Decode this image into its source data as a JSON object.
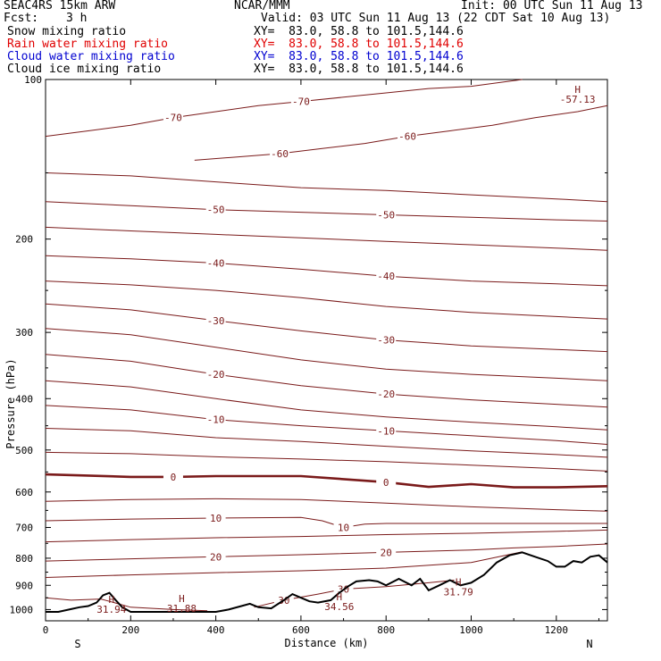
{
  "header": {
    "model": "SEAC4RS 15km ARW",
    "org": "NCAR/MMM",
    "init": "Init: 00 UTC Sun 11 Aug 13",
    "fcst_label": "Fcst:",
    "fcst_value": "3 h",
    "valid": "Valid: 03 UTC Sun 11 Aug 13 (22 CDT Sat 10 Aug 13)"
  },
  "legend": [
    {
      "name": "Snow mixing ratio",
      "xy": "XY=  83.0, 58.8 to 101.5,144.6",
      "color": "#000000"
    },
    {
      "name": "Rain water mixing ratio",
      "xy": "XY=  83.0, 58.8 to 101.5,144.6",
      "color": "#e00000"
    },
    {
      "name": "Cloud water mixing ratio",
      "xy": "XY=  83.0, 58.8 to 101.5,144.6",
      "color": "#0000d0"
    },
    {
      "name": "Cloud ice mixing ratio",
      "xy": "XY=  83.0, 58.8 to 101.5,144.6",
      "color": "#000000"
    }
  ],
  "colors": {
    "isotherm": "#7a1a1a",
    "terrain": "#000000",
    "axis": "#000000"
  },
  "chart_data": {
    "type": "line",
    "title": "",
    "xlabel": "Distance (km)",
    "ylabel": "Pressure (hPa)",
    "xlim": [
      0,
      1320
    ],
    "ylim": [
      1050,
      100
    ],
    "y_scale": "log",
    "x_ticks": [
      0,
      200,
      400,
      600,
      800,
      1000,
      1200
    ],
    "y_ticks": [
      200,
      300,
      400,
      500,
      600,
      700,
      800,
      900,
      1000
    ],
    "y_top_label": "100",
    "endpoint_labels": {
      "left": "S",
      "right": "N"
    },
    "terrain": {
      "x": [
        0,
        30,
        60,
        80,
        100,
        120,
        135,
        150,
        165,
        180,
        200,
        250,
        300,
        350,
        400,
        430,
        460,
        480,
        500,
        530,
        560,
        580,
        600,
        620,
        640,
        670,
        690,
        710,
        730,
        760,
        780,
        800,
        830,
        860,
        880,
        900,
        925,
        950,
        975,
        1000,
        1030,
        1060,
        1090,
        1120,
        1150,
        1180,
        1200,
        1220,
        1240,
        1260,
        1280,
        1300,
        1320
      ],
      "p": [
        1010,
        1010,
        998,
        990,
        985,
        970,
        940,
        930,
        960,
        990,
        1010,
        1010,
        1010,
        1010,
        1010,
        1000,
        985,
        975,
        990,
        995,
        960,
        935,
        950,
        965,
        970,
        960,
        930,
        905,
        885,
        880,
        885,
        900,
        875,
        900,
        875,
        920,
        900,
        880,
        900,
        890,
        860,
        815,
        790,
        780,
        795,
        810,
        830,
        830,
        810,
        815,
        795,
        790,
        815
      ]
    },
    "isotherms": [
      {
        "label": "-70",
        "x": [
          0,
          100,
          200,
          300,
          400,
          500,
          600,
          700,
          800,
          900,
          1000,
          1120
        ],
        "p": [
          128,
          125,
          122,
          118,
          115,
          112,
          110,
          108,
          106,
          104,
          103,
          100
        ]
      },
      {
        "label": "-60",
        "x": [
          350,
          450,
          550,
          650,
          750,
          850,
          950,
          1050,
          1150,
          1250,
          1320
        ],
        "p": [
          142,
          140,
          138,
          135,
          132,
          128,
          125,
          122,
          118,
          115,
          112
        ]
      },
      {
        "label": "",
        "x": [
          0,
          200,
          400,
          600,
          800,
          1000,
          1200,
          1320
        ],
        "p": [
          150,
          152,
          156,
          160,
          162,
          165,
          168,
          170
        ]
      },
      {
        "label": "-50",
        "x": [
          0,
          200,
          400,
          600,
          800,
          1000,
          1200,
          1320
        ],
        "p": [
          170,
          173,
          176,
          178,
          180,
          182,
          184,
          185
        ]
      },
      {
        "label": "",
        "x": [
          0,
          200,
          400,
          600,
          800,
          1000,
          1200,
          1320
        ],
        "p": [
          190,
          193,
          196,
          199,
          202,
          205,
          208,
          210
        ]
      },
      {
        "label": "-40",
        "x": [
          0,
          200,
          400,
          600,
          800,
          1000,
          1200,
          1320
        ],
        "p": [
          215,
          218,
          222,
          228,
          235,
          240,
          243,
          245
        ]
      },
      {
        "label": "",
        "x": [
          0,
          200,
          400,
          600,
          800,
          1000,
          1200,
          1320
        ],
        "p": [
          240,
          244,
          250,
          258,
          268,
          275,
          280,
          283
        ]
      },
      {
        "label": "-30",
        "x": [
          0,
          200,
          400,
          600,
          800,
          1000,
          1200,
          1320
        ],
        "p": [
          265,
          272,
          285,
          298,
          310,
          318,
          323,
          326
        ]
      },
      {
        "label": "",
        "x": [
          0,
          200,
          400,
          600,
          800,
          1000,
          1200,
          1320
        ],
        "p": [
          295,
          303,
          320,
          338,
          352,
          360,
          366,
          370
        ]
      },
      {
        "label": "-20",
        "x": [
          0,
          200,
          400,
          600,
          800,
          1000,
          1200,
          1320
        ],
        "p": [
          330,
          340,
          360,
          378,
          392,
          402,
          410,
          415
        ]
      },
      {
        "label": "",
        "x": [
          0,
          200,
          400,
          600,
          800,
          1000,
          1200,
          1320
        ],
        "p": [
          370,
          380,
          400,
          420,
          433,
          443,
          452,
          458
        ]
      },
      {
        "label": "-10",
        "x": [
          0,
          200,
          400,
          600,
          800,
          1000,
          1200,
          1320
        ],
        "p": [
          412,
          420,
          438,
          450,
          460,
          470,
          480,
          488
        ]
      },
      {
        "label": "",
        "x": [
          0,
          200,
          400,
          600,
          800,
          1000,
          1200,
          1320
        ],
        "p": [
          455,
          460,
          474,
          482,
          492,
          502,
          510,
          516
        ]
      },
      {
        "label": "",
        "x": [
          0,
          200,
          400,
          600,
          800,
          1000,
          1200,
          1320
        ],
        "p": [
          505,
          508,
          515,
          520,
          526,
          534,
          542,
          548
        ]
      },
      {
        "label": "0",
        "x": [
          0,
          200,
          300,
          400,
          600,
          800,
          900,
          1000,
          1100,
          1200,
          1320
        ],
        "p": [
          556,
          562,
          562,
          560,
          560,
          575,
          587,
          580,
          588,
          588,
          585
        ]
      },
      {
        "label": "",
        "x": [
          0,
          200,
          400,
          600,
          800,
          1000,
          1200,
          1320
        ],
        "p": [
          625,
          620,
          618,
          620,
          630,
          640,
          648,
          652
        ]
      },
      {
        "label": "10",
        "x": [
          0,
          200,
          400,
          600,
          650,
          700,
          750,
          800,
          1000,
          1200,
          1320
        ],
        "p": [
          680,
          675,
          672,
          670,
          680,
          700,
          690,
          688,
          688,
          688,
          688
        ]
      },
      {
        "label": "",
        "x": [
          0,
          200,
          400,
          600,
          800,
          1000,
          1200,
          1320
        ],
        "p": [
          745,
          738,
          732,
          728,
          722,
          718,
          712,
          708
        ]
      },
      {
        "label": "20",
        "x": [
          0,
          200,
          400,
          600,
          800,
          1000,
          1100,
          1200,
          1320
        ],
        "p": [
          810,
          802,
          795,
          788,
          780,
          772,
          765,
          760,
          752
        ]
      },
      {
        "label": "",
        "x": [
          0,
          200,
          400,
          600,
          800,
          1000,
          1120
        ],
        "p": [
          870,
          860,
          852,
          845,
          835,
          815,
          778
        ]
      },
      {
        "label": "30",
        "x": [
          490,
          560,
          640,
          700,
          800,
          900,
          960
        ],
        "p": [
          990,
          960,
          935,
          915,
          905,
          890,
          880
        ]
      },
      {
        "label": "",
        "x": [
          0,
          60,
          130,
          150,
          200,
          300,
          380
        ],
        "p": [
          950,
          960,
          955,
          965,
          990,
          1000,
          1005
        ]
      }
    ],
    "annotations": [
      {
        "text": "H",
        "value": "31.94",
        "x": 155,
        "p": 972
      },
      {
        "text": "H",
        "value": "31.88",
        "x": 320,
        "p": 968
      },
      {
        "text": "H",
        "value": "34.56",
        "x": 690,
        "p": 960
      },
      {
        "text": "H",
        "value": "31.79",
        "x": 970,
        "p": 900
      },
      {
        "text": "H",
        "value": "-57.13",
        "x": 1250,
        "p": 106
      }
    ]
  }
}
